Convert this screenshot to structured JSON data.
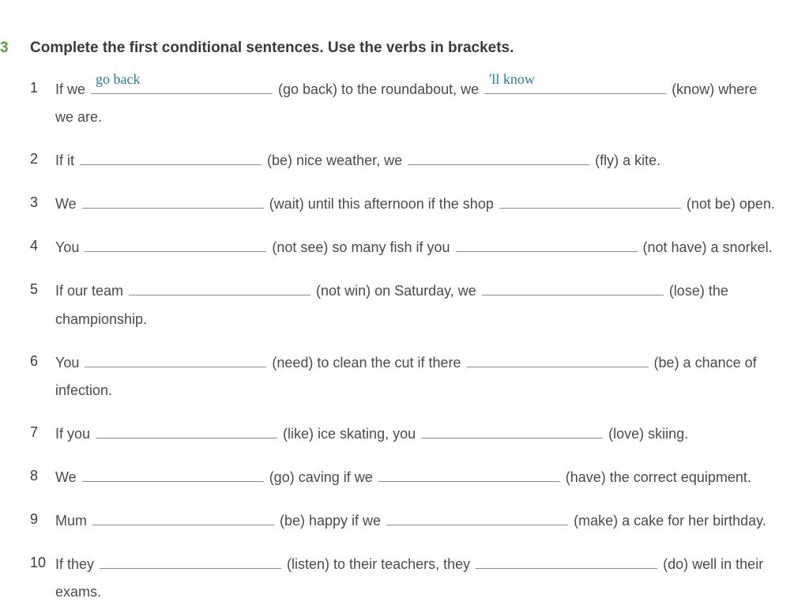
{
  "exercise_number": "3",
  "title": "Complete the first conditional sentences. Use the verbs in brackets.",
  "answer_color": "#2a7a9e",
  "number_color": "#5a9e3e",
  "text_color": "#3a3a3a",
  "background": "#ffffff",
  "font_size": 18,
  "title_font_size": 19,
  "blank_line_color": "#8a8a8a",
  "items": [
    {
      "num": "1",
      "parts": [
        "If we ",
        {
          "blank": true,
          "answer": "go back"
        },
        " (go back) to the roundabout, we ",
        {
          "blank": true,
          "answer": "'ll know"
        },
        " (know) where we are."
      ]
    },
    {
      "num": "2",
      "parts": [
        "If it ",
        {
          "blank": true
        },
        " (be) nice weather, we ",
        {
          "blank": true
        },
        " (fly) a kite."
      ]
    },
    {
      "num": "3",
      "parts": [
        "We ",
        {
          "blank": true
        },
        " (wait) until this afternoon if the shop ",
        {
          "blank": true
        },
        " (not be) open."
      ]
    },
    {
      "num": "4",
      "parts": [
        "You ",
        {
          "blank": true
        },
        " (not see) so many fish if you ",
        {
          "blank": true
        },
        " (not have) a snorkel."
      ]
    },
    {
      "num": "5",
      "parts": [
        "If our team ",
        {
          "blank": true
        },
        " (not win) on Saturday, we ",
        {
          "blank": true
        },
        " (lose) the championship."
      ]
    },
    {
      "num": "6",
      "parts": [
        "You ",
        {
          "blank": true
        },
        " (need) to clean the cut if there ",
        {
          "blank": true
        },
        " (be) a chance of infection."
      ]
    },
    {
      "num": "7",
      "parts": [
        "If you ",
        {
          "blank": true
        },
        " (like) ice skating, you ",
        {
          "blank": true
        },
        " (love) skiing."
      ]
    },
    {
      "num": "8",
      "parts": [
        "We ",
        {
          "blank": true
        },
        " (go) caving if we ",
        {
          "blank": true
        },
        " (have) the correct equipment."
      ]
    },
    {
      "num": "9",
      "parts": [
        "Mum ",
        {
          "blank": true
        },
        " (be) happy if we ",
        {
          "blank": true
        },
        " (make) a cake for her birthday."
      ]
    },
    {
      "num": "10",
      "parts": [
        "If they ",
        {
          "blank": true
        },
        " (listen) to their teachers, they ",
        {
          "blank": true
        },
        " (do) well in their exams."
      ]
    }
  ]
}
